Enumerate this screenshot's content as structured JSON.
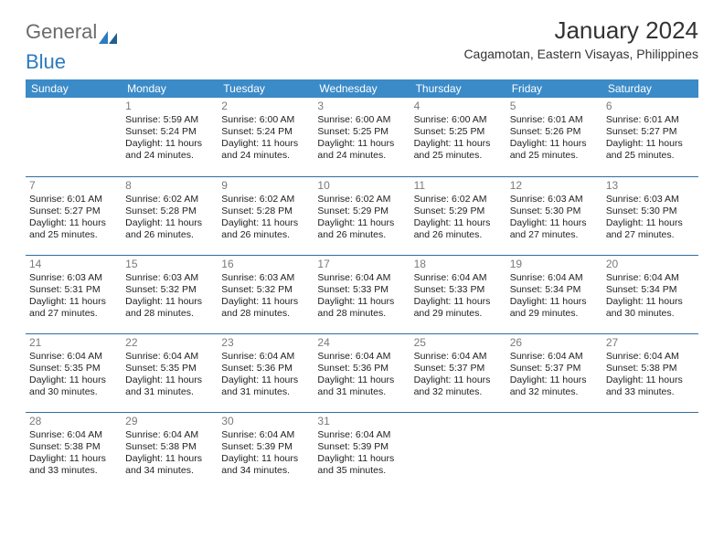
{
  "brand": {
    "word1": "General",
    "word2": "Blue"
  },
  "header": {
    "title": "January 2024",
    "location": "Cagamotan, Eastern Visayas, Philippines"
  },
  "colors": {
    "header_bg": "#3b8bc9",
    "header_text": "#ffffff",
    "row_border": "#2d6fa3",
    "logo_gray": "#6b6b6b",
    "logo_blue": "#2b7bbf",
    "daynum": "#7a7a7a",
    "body_text": "#222222",
    "page_bg": "#ffffff"
  },
  "weekdays": [
    "Sunday",
    "Monday",
    "Tuesday",
    "Wednesday",
    "Thursday",
    "Friday",
    "Saturday"
  ],
  "weeks": [
    [
      null,
      {
        "n": "1",
        "sr": "Sunrise: 5:59 AM",
        "ss": "Sunset: 5:24 PM",
        "d1": "Daylight: 11 hours",
        "d2": "and 24 minutes."
      },
      {
        "n": "2",
        "sr": "Sunrise: 6:00 AM",
        "ss": "Sunset: 5:24 PM",
        "d1": "Daylight: 11 hours",
        "d2": "and 24 minutes."
      },
      {
        "n": "3",
        "sr": "Sunrise: 6:00 AM",
        "ss": "Sunset: 5:25 PM",
        "d1": "Daylight: 11 hours",
        "d2": "and 24 minutes."
      },
      {
        "n": "4",
        "sr": "Sunrise: 6:00 AM",
        "ss": "Sunset: 5:25 PM",
        "d1": "Daylight: 11 hours",
        "d2": "and 25 minutes."
      },
      {
        "n": "5",
        "sr": "Sunrise: 6:01 AM",
        "ss": "Sunset: 5:26 PM",
        "d1": "Daylight: 11 hours",
        "d2": "and 25 minutes."
      },
      {
        "n": "6",
        "sr": "Sunrise: 6:01 AM",
        "ss": "Sunset: 5:27 PM",
        "d1": "Daylight: 11 hours",
        "d2": "and 25 minutes."
      }
    ],
    [
      {
        "n": "7",
        "sr": "Sunrise: 6:01 AM",
        "ss": "Sunset: 5:27 PM",
        "d1": "Daylight: 11 hours",
        "d2": "and 25 minutes."
      },
      {
        "n": "8",
        "sr": "Sunrise: 6:02 AM",
        "ss": "Sunset: 5:28 PM",
        "d1": "Daylight: 11 hours",
        "d2": "and 26 minutes."
      },
      {
        "n": "9",
        "sr": "Sunrise: 6:02 AM",
        "ss": "Sunset: 5:28 PM",
        "d1": "Daylight: 11 hours",
        "d2": "and 26 minutes."
      },
      {
        "n": "10",
        "sr": "Sunrise: 6:02 AM",
        "ss": "Sunset: 5:29 PM",
        "d1": "Daylight: 11 hours",
        "d2": "and 26 minutes."
      },
      {
        "n": "11",
        "sr": "Sunrise: 6:02 AM",
        "ss": "Sunset: 5:29 PM",
        "d1": "Daylight: 11 hours",
        "d2": "and 26 minutes."
      },
      {
        "n": "12",
        "sr": "Sunrise: 6:03 AM",
        "ss": "Sunset: 5:30 PM",
        "d1": "Daylight: 11 hours",
        "d2": "and 27 minutes."
      },
      {
        "n": "13",
        "sr": "Sunrise: 6:03 AM",
        "ss": "Sunset: 5:30 PM",
        "d1": "Daylight: 11 hours",
        "d2": "and 27 minutes."
      }
    ],
    [
      {
        "n": "14",
        "sr": "Sunrise: 6:03 AM",
        "ss": "Sunset: 5:31 PM",
        "d1": "Daylight: 11 hours",
        "d2": "and 27 minutes."
      },
      {
        "n": "15",
        "sr": "Sunrise: 6:03 AM",
        "ss": "Sunset: 5:32 PM",
        "d1": "Daylight: 11 hours",
        "d2": "and 28 minutes."
      },
      {
        "n": "16",
        "sr": "Sunrise: 6:03 AM",
        "ss": "Sunset: 5:32 PM",
        "d1": "Daylight: 11 hours",
        "d2": "and 28 minutes."
      },
      {
        "n": "17",
        "sr": "Sunrise: 6:04 AM",
        "ss": "Sunset: 5:33 PM",
        "d1": "Daylight: 11 hours",
        "d2": "and 28 minutes."
      },
      {
        "n": "18",
        "sr": "Sunrise: 6:04 AM",
        "ss": "Sunset: 5:33 PM",
        "d1": "Daylight: 11 hours",
        "d2": "and 29 minutes."
      },
      {
        "n": "19",
        "sr": "Sunrise: 6:04 AM",
        "ss": "Sunset: 5:34 PM",
        "d1": "Daylight: 11 hours",
        "d2": "and 29 minutes."
      },
      {
        "n": "20",
        "sr": "Sunrise: 6:04 AM",
        "ss": "Sunset: 5:34 PM",
        "d1": "Daylight: 11 hours",
        "d2": "and 30 minutes."
      }
    ],
    [
      {
        "n": "21",
        "sr": "Sunrise: 6:04 AM",
        "ss": "Sunset: 5:35 PM",
        "d1": "Daylight: 11 hours",
        "d2": "and 30 minutes."
      },
      {
        "n": "22",
        "sr": "Sunrise: 6:04 AM",
        "ss": "Sunset: 5:35 PM",
        "d1": "Daylight: 11 hours",
        "d2": "and 31 minutes."
      },
      {
        "n": "23",
        "sr": "Sunrise: 6:04 AM",
        "ss": "Sunset: 5:36 PM",
        "d1": "Daylight: 11 hours",
        "d2": "and 31 minutes."
      },
      {
        "n": "24",
        "sr": "Sunrise: 6:04 AM",
        "ss": "Sunset: 5:36 PM",
        "d1": "Daylight: 11 hours",
        "d2": "and 31 minutes."
      },
      {
        "n": "25",
        "sr": "Sunrise: 6:04 AM",
        "ss": "Sunset: 5:37 PM",
        "d1": "Daylight: 11 hours",
        "d2": "and 32 minutes."
      },
      {
        "n": "26",
        "sr": "Sunrise: 6:04 AM",
        "ss": "Sunset: 5:37 PM",
        "d1": "Daylight: 11 hours",
        "d2": "and 32 minutes."
      },
      {
        "n": "27",
        "sr": "Sunrise: 6:04 AM",
        "ss": "Sunset: 5:38 PM",
        "d1": "Daylight: 11 hours",
        "d2": "and 33 minutes."
      }
    ],
    [
      {
        "n": "28",
        "sr": "Sunrise: 6:04 AM",
        "ss": "Sunset: 5:38 PM",
        "d1": "Daylight: 11 hours",
        "d2": "and 33 minutes."
      },
      {
        "n": "29",
        "sr": "Sunrise: 6:04 AM",
        "ss": "Sunset: 5:38 PM",
        "d1": "Daylight: 11 hours",
        "d2": "and 34 minutes."
      },
      {
        "n": "30",
        "sr": "Sunrise: 6:04 AM",
        "ss": "Sunset: 5:39 PM",
        "d1": "Daylight: 11 hours",
        "d2": "and 34 minutes."
      },
      {
        "n": "31",
        "sr": "Sunrise: 6:04 AM",
        "ss": "Sunset: 5:39 PM",
        "d1": "Daylight: 11 hours",
        "d2": "and 35 minutes."
      },
      null,
      null,
      null
    ]
  ]
}
